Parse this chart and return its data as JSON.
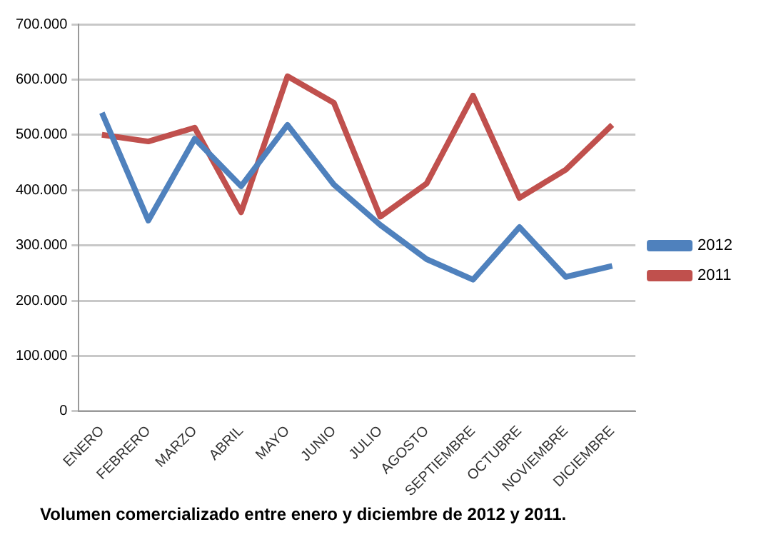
{
  "chart_data": {
    "type": "line",
    "categories": [
      "ENERO",
      "FEBRERO",
      "MARZO",
      "ABRIL",
      "MAYO",
      "JUNIO",
      "JULIO",
      "AGOSTO",
      "SEPTIEMBRE",
      "OCTUBRE",
      "NOVIEMBRE",
      "DICIEMBRE"
    ],
    "series": [
      {
        "name": "2012",
        "color": "#4f81bd",
        "values": [
          540000,
          345000,
          493000,
          407000,
          518000,
          410000,
          337000,
          275000,
          238000,
          333000,
          243000,
          263000
        ]
      },
      {
        "name": "2011",
        "color": "#c0504d",
        "values": [
          500000,
          488000,
          513000,
          360000,
          606000,
          558000,
          352000,
          412000,
          571000,
          386000,
          437000,
          518000
        ]
      }
    ],
    "ylim": [
      0,
      700000
    ],
    "yticks": [
      0,
      {
        "value": 100000,
        "label": "100.000"
      },
      {
        "value": 200000,
        "label": "200.000"
      },
      {
        "value": 300000,
        "label": "300.000"
      },
      {
        "value": 400000,
        "label": "400.000"
      },
      {
        "value": 500000,
        "label": "500.000"
      },
      {
        "value": 600000,
        "label": "600.000"
      },
      {
        "value": 700000,
        "label": "700.000"
      }
    ],
    "grid": "y",
    "legend": "right",
    "marker": "none",
    "line_style": "solid",
    "annotations": [
      "Volumen comercializado entre enero y diciembre de 2012 y 2011."
    ]
  }
}
